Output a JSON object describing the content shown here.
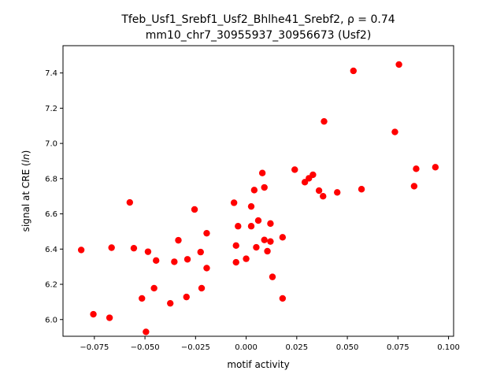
{
  "chart_data": {
    "type": "scatter",
    "title_line1": "Tfeb_Usf1_Srebf1_Usf2_Bhlhe41_Srebf2, ρ = 0.74",
    "title_line2": "mm10_chr7_30955937_30956673 (Usf2)",
    "xlabel": "motif activity",
    "ylabel_prefix": "signal at CRE (",
    "ylabel_var": "ln",
    "ylabel_suffix": ")",
    "xlim": [
      -0.0905,
      0.1025
    ],
    "ylim": [
      5.905,
      7.555
    ],
    "xticks": [
      -0.075,
      -0.05,
      -0.025,
      0.0,
      0.025,
      0.05,
      0.075,
      0.1
    ],
    "xtick_labels": [
      "−0.075",
      "−0.050",
      "−0.025",
      "0.000",
      "0.025",
      "0.050",
      "0.075",
      "0.100"
    ],
    "yticks": [
      6.0,
      6.2,
      6.4,
      6.6,
      6.8,
      7.0,
      7.2,
      7.4
    ],
    "ytick_labels": [
      "6.0",
      "6.2",
      "6.4",
      "6.6",
      "6.8",
      "7.0",
      "7.2",
      "7.4"
    ],
    "point_color": "#ff0000",
    "grid": false,
    "points": [
      {
        "x": -0.0815,
        "y": 6.395
      },
      {
        "x": -0.0755,
        "y": 6.03
      },
      {
        "x": -0.0675,
        "y": 6.01
      },
      {
        "x": -0.0665,
        "y": 6.408
      },
      {
        "x": -0.0575,
        "y": 6.665
      },
      {
        "x": -0.0555,
        "y": 6.405
      },
      {
        "x": -0.0515,
        "y": 6.12
      },
      {
        "x": -0.0495,
        "y": 5.93
      },
      {
        "x": -0.0485,
        "y": 6.385
      },
      {
        "x": -0.0455,
        "y": 6.178
      },
      {
        "x": -0.0445,
        "y": 6.335
      },
      {
        "x": -0.0375,
        "y": 6.092
      },
      {
        "x": -0.0355,
        "y": 6.328
      },
      {
        "x": -0.0335,
        "y": 6.45
      },
      {
        "x": -0.0295,
        "y": 6.128
      },
      {
        "x": -0.029,
        "y": 6.342
      },
      {
        "x": -0.0255,
        "y": 6.625
      },
      {
        "x": -0.0225,
        "y": 6.383
      },
      {
        "x": -0.022,
        "y": 6.178
      },
      {
        "x": -0.0195,
        "y": 6.292
      },
      {
        "x": -0.0195,
        "y": 6.49
      },
      {
        "x": -0.006,
        "y": 6.663
      },
      {
        "x": -0.005,
        "y": 6.42
      },
      {
        "x": -0.005,
        "y": 6.325
      },
      {
        "x": -0.004,
        "y": 6.53
      },
      {
        "x": 0.0,
        "y": 6.345
      },
      {
        "x": 0.0025,
        "y": 6.642
      },
      {
        "x": 0.0025,
        "y": 6.53
      },
      {
        "x": 0.004,
        "y": 6.735
      },
      {
        "x": 0.005,
        "y": 6.41
      },
      {
        "x": 0.006,
        "y": 6.562
      },
      {
        "x": 0.008,
        "y": 6.832
      },
      {
        "x": 0.009,
        "y": 6.75
      },
      {
        "x": 0.009,
        "y": 6.452
      },
      {
        "x": 0.0105,
        "y": 6.388
      },
      {
        "x": 0.012,
        "y": 6.545
      },
      {
        "x": 0.012,
        "y": 6.443
      },
      {
        "x": 0.013,
        "y": 6.242
      },
      {
        "x": 0.018,
        "y": 6.467
      },
      {
        "x": 0.018,
        "y": 6.12
      },
      {
        "x": 0.024,
        "y": 6.851
      },
      {
        "x": 0.029,
        "y": 6.78
      },
      {
        "x": 0.031,
        "y": 6.802
      },
      {
        "x": 0.033,
        "y": 6.822
      },
      {
        "x": 0.036,
        "y": 6.732
      },
      {
        "x": 0.038,
        "y": 6.7
      },
      {
        "x": 0.0385,
        "y": 7.125
      },
      {
        "x": 0.045,
        "y": 6.722
      },
      {
        "x": 0.053,
        "y": 7.412
      },
      {
        "x": 0.057,
        "y": 6.74
      },
      {
        "x": 0.0735,
        "y": 7.065
      },
      {
        "x": 0.0755,
        "y": 7.448
      },
      {
        "x": 0.083,
        "y": 6.757
      },
      {
        "x": 0.084,
        "y": 6.856
      },
      {
        "x": 0.0935,
        "y": 6.865
      }
    ]
  }
}
